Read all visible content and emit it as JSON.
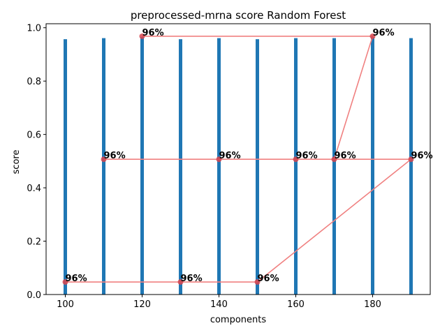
{
  "chart_data": {
    "type": "bar",
    "title": "preprocessed-mrna score Random Forest",
    "xlabel": "components",
    "ylabel": "score",
    "xlim": [
      95,
      195
    ],
    "ylim": [
      0,
      1.015
    ],
    "xticks": [
      100,
      120,
      140,
      160,
      180
    ],
    "yticks": [
      0.0,
      0.2,
      0.4,
      0.6,
      0.8,
      1.0
    ],
    "xtick_labels": [
      "100",
      "120",
      "140",
      "160",
      "180"
    ],
    "ytick_labels": [
      "0.0",
      "0.2",
      "0.4",
      "0.6",
      "0.8",
      "1.0"
    ],
    "grid": false,
    "bars": {
      "x": [
        100,
        110,
        120,
        130,
        140,
        150,
        160,
        170,
        180,
        190
      ],
      "values": [
        0.957,
        0.961,
        0.965,
        0.957,
        0.961,
        0.957,
        0.961,
        0.961,
        0.965,
        0.961
      ],
      "color": "#1f77b4"
    },
    "line": {
      "x": [
        100,
        130,
        150,
        190,
        110,
        140,
        160,
        170,
        180,
        120
      ],
      "y": [
        0.047,
        0.047,
        0.047,
        0.507,
        0.507,
        0.507,
        0.507,
        0.507,
        0.968,
        0.968
      ],
      "labels": [
        "96%",
        "96%",
        "96%",
        "96%",
        "96%",
        "96%",
        "96%",
        "96%",
        "96%",
        "96%"
      ],
      "line_color": "#f08080",
      "marker_color": "#d6454f"
    }
  }
}
